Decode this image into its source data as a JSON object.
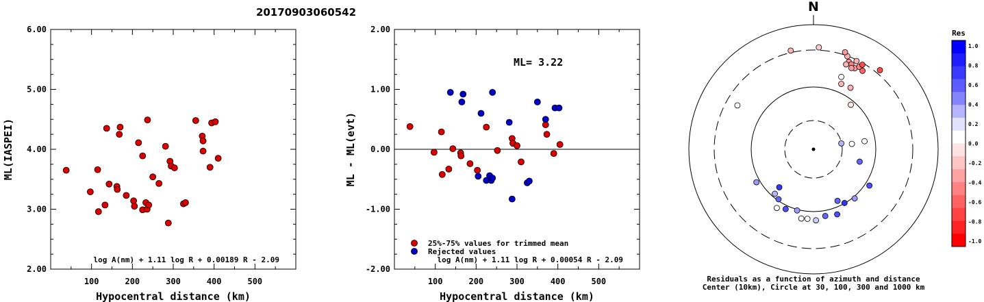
{
  "chart_data": [
    {
      "type": "scatter",
      "title": "20170903060542",
      "xlabel": "Hypocentral distance (km)",
      "ylabel": "ML(IASPEI)",
      "xlim": [
        0,
        600
      ],
      "ylim": [
        2.0,
        6.0
      ],
      "xticks": [
        "100",
        "200",
        "300",
        "400",
        "500"
      ],
      "yticks": [
        "2.00",
        "3.00",
        "4.00",
        "5.00",
        "6.00"
      ],
      "formula": "log A(nm) + 1.11 log R + 0.00189 R - 2.09",
      "color": "#dd0000",
      "points": [
        [
          38,
          3.65
        ],
        [
          97,
          3.29
        ],
        [
          115,
          3.66
        ],
        [
          117,
          2.96
        ],
        [
          133,
          3.07
        ],
        [
          137,
          4.35
        ],
        [
          143,
          3.42
        ],
        [
          162,
          3.38
        ],
        [
          163,
          3.33
        ],
        [
          168,
          4.25
        ],
        [
          170,
          4.37
        ],
        [
          185,
          3.23
        ],
        [
          203,
          3.14
        ],
        [
          205,
          3.05
        ],
        [
          215,
          4.11
        ],
        [
          225,
          3.89
        ],
        [
          225,
          2.99
        ],
        [
          233,
          3.11
        ],
        [
          236,
          3.0
        ],
        [
          237,
          4.49
        ],
        [
          240,
          3.07
        ],
        [
          250,
          3.54
        ],
        [
          265,
          3.43
        ],
        [
          281,
          4.05
        ],
        [
          288,
          2.77
        ],
        [
          292,
          3.8
        ],
        [
          295,
          3.72
        ],
        [
          303,
          3.69
        ],
        [
          325,
          3.09
        ],
        [
          330,
          3.11
        ],
        [
          355,
          4.48
        ],
        [
          371,
          4.22
        ],
        [
          373,
          3.97
        ],
        [
          373,
          4.14
        ],
        [
          390,
          3.7
        ],
        [
          394,
          4.44
        ],
        [
          403,
          4.46
        ],
        [
          410,
          3.85
        ]
      ]
    },
    {
      "type": "scatter",
      "xlabel": "Hypocentral distance (km)",
      "ylabel": "ML - ML(evt)",
      "xlim": [
        0,
        600
      ],
      "ylim": [
        -2.0,
        2.0
      ],
      "xticks": [
        "100",
        "200",
        "300",
        "400",
        "500"
      ],
      "yticks": [
        "-2.00",
        "-1.00",
        "0.00",
        "1.00",
        "2.00"
      ],
      "annotation": "ML= 3.22",
      "formula": "log A(nm) + 1.11 log R + 0.00054 R - 2.09",
      "legend": [
        "25%-75% values for trimmed mean",
        "Rejected values"
      ],
      "colors": [
        "#dd0000",
        "#0000cc"
      ],
      "points_trimmed": [
        [
          38,
          0.38
        ],
        [
          97,
          -0.05
        ],
        [
          115,
          0.29
        ],
        [
          117,
          -0.42
        ],
        [
          133,
          -0.33
        ],
        [
          143,
          0.01
        ],
        [
          162,
          -0.06
        ],
        [
          163,
          -0.11
        ],
        [
          185,
          -0.24
        ],
        [
          203,
          -0.35
        ],
        [
          225,
          0.37
        ],
        [
          252,
          -0.02
        ],
        [
          288,
          0.18
        ],
        [
          290,
          0.1
        ],
        [
          300,
          0.06
        ],
        [
          310,
          -0.21
        ],
        [
          370,
          0.41
        ],
        [
          373,
          0.25
        ],
        [
          390,
          -0.07
        ],
        [
          405,
          0.08
        ]
      ],
      "points_rejected": [
        [
          137,
          0.95
        ],
        [
          165,
          0.79
        ],
        [
          168,
          0.92
        ],
        [
          205,
          -0.45
        ],
        [
          212,
          0.6
        ],
        [
          225,
          -0.52
        ],
        [
          233,
          -0.44
        ],
        [
          237,
          -0.52
        ],
        [
          240,
          0.95
        ],
        [
          240,
          -0.48
        ],
        [
          281,
          0.45
        ],
        [
          288,
          -0.83
        ],
        [
          325,
          -0.56
        ],
        [
          330,
          -0.53
        ],
        [
          350,
          0.79
        ],
        [
          370,
          0.5
        ],
        [
          393,
          0.69
        ],
        [
          403,
          0.69
        ]
      ]
    },
    {
      "type": "scatter",
      "north_label": "N",
      "caption_line1": "Residuals as a function of azimuth and distance",
      "caption_line2": "Center (10km), Circle at 30, 100, 300 and 1000 km",
      "colorbar_title": "Res",
      "colorbar_ticks": [
        "1.0",
        "0.8",
        "0.6",
        "0.4",
        "0.2",
        "0.0",
        "-0.2",
        "-0.4",
        "-0.6",
        "-0.8",
        "-1.0"
      ],
      "colorbar_colors": [
        "#0000ff",
        "#1c1cff",
        "#3a3aff",
        "#5c5cff",
        "#8484ff",
        "#b4b4ff",
        "#e2e2ff",
        "#ffffff",
        "#ffe2e2",
        "#ffc4c4",
        "#ffa2a2",
        "#ff8282",
        "#ff6262",
        "#ff4242",
        "#ff2222",
        "#ff0000"
      ],
      "stations": [
        {
          "az": 26,
          "dist": 380,
          "res": -0.3
        },
        {
          "az": 20,
          "dist": 383,
          "res": -0.3
        },
        {
          "az": 18,
          "dist": 395,
          "res": -0.4
        },
        {
          "az": 22,
          "dist": 365,
          "res": -0.4
        },
        {
          "az": 24,
          "dist": 360,
          "res": -0.5
        },
        {
          "az": 27,
          "dist": 352,
          "res": -0.4
        },
        {
          "az": 25,
          "dist": 347,
          "res": -0.4
        },
        {
          "az": 21,
          "dist": 352,
          "res": -0.3
        },
        {
          "az": 29,
          "dist": 365,
          "res": -0.5
        },
        {
          "az": 32,
          "dist": 358,
          "res": -0.6
        },
        {
          "az": 30,
          "dist": 378,
          "res": -0.7
        },
        {
          "az": 40,
          "dist": 400,
          "res": -0.7
        },
        {
          "az": 3,
          "dist": 395,
          "res": -0.2
        },
        {
          "az": -13,
          "dist": 392,
          "res": -0.3
        },
        {
          "az": 21,
          "dist": 300,
          "res": 0.0
        },
        {
          "az": 23,
          "dist": 275,
          "res": -0.3
        },
        {
          "az": 31,
          "dist": 278,
          "res": -0.3
        },
        {
          "az": 40,
          "dist": 225,
          "res": -0.1
        },
        {
          "az": 300,
          "dist": 340,
          "res": 0.0
        },
        {
          "az": 78,
          "dist": 110,
          "res": 0.3
        },
        {
          "az": 82,
          "dist": 150,
          "res": 0.0
        },
        {
          "az": 81,
          "dist": 200,
          "res": 0.0
        },
        {
          "az": 105,
          "dist": 185,
          "res": 0.6
        },
        {
          "az": 123,
          "dist": 258,
          "res": 0.7
        },
        {
          "az": 140,
          "dist": 248,
          "res": 0.4
        },
        {
          "az": 150,
          "dist": 240,
          "res": 0.8
        },
        {
          "az": 155,
          "dist": 220,
          "res": 0.6
        },
        {
          "az": 160,
          "dist": 268,
          "res": 0.7
        },
        {
          "az": 170,
          "dist": 262,
          "res": 0.6
        },
        {
          "az": 178,
          "dist": 275,
          "res": 0.2
        },
        {
          "az": 185,
          "dist": 270,
          "res": 0.0
        },
        {
          "az": 190,
          "dist": 272,
          "res": 0.0
        },
        {
          "az": 195,
          "dist": 245,
          "res": 0.4
        },
        {
          "az": 205,
          "dist": 255,
          "res": 0.7
        },
        {
          "az": 212,
          "dist": 268,
          "res": 0.0
        },
        {
          "az": 215,
          "dist": 236,
          "res": 0.6
        },
        {
          "az": 221,
          "dist": 228,
          "res": 0.3
        },
        {
          "az": 222,
          "dist": 198,
          "res": 0.8
        },
        {
          "az": 240,
          "dist": 255,
          "res": 0.4
        }
      ]
    }
  ]
}
